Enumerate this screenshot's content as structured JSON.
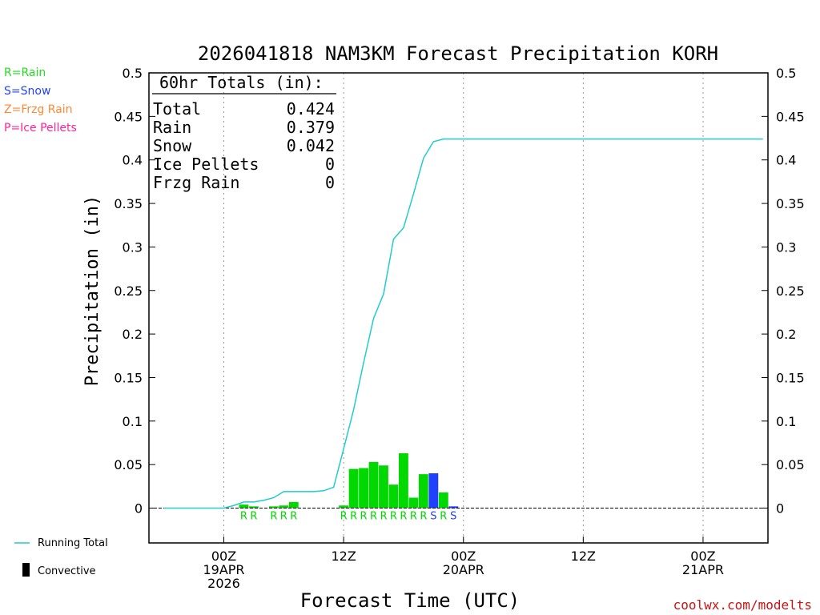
{
  "title": "2026041818 NAM3KM Forecast Precipitation KORH",
  "xlabel": "Forecast Time (UTC)",
  "ylabel": "Precipitation (in)",
  "credit": "coolwx.com/modelts",
  "legend_ptype": [
    {
      "text": "R=Rain",
      "color": "#22dd22"
    },
    {
      "text": "S=Snow",
      "color": "#2244ff"
    },
    {
      "text": "Z=Frzg Rain",
      "color": "#ff8833"
    },
    {
      "text": "P=Ice Pellets",
      "color": "#ff2299"
    }
  ],
  "legend_series": [
    {
      "text": "Running Total",
      "color": "#22cccc",
      "kind": "line"
    },
    {
      "text": "Convective",
      "color": "#000000",
      "kind": "bar"
    }
  ],
  "totals_box": {
    "header": "60hr Totals (in):",
    "rows": [
      {
        "label": "Total",
        "value": "0.424"
      },
      {
        "label": "Rain",
        "value": "0.379"
      },
      {
        "label": "Snow",
        "value": "0.042"
      },
      {
        "label": "Ice Pellets",
        "value": "0"
      },
      {
        "label": "Frzg Rain",
        "value": "0"
      }
    ]
  },
  "colors": {
    "rain": "#00d800",
    "snow": "#2040ff",
    "running_total": "#22cccc",
    "grid": "#999999"
  },
  "chart_data": {
    "type": "bar",
    "title": "2026041818 NAM3KM Forecast Precipitation KORH",
    "xlabel": "Forecast Time (UTC)",
    "ylabel": "Precipitation (in)",
    "ylim": [
      -0.04,
      0.5
    ],
    "yticks": [
      0,
      0.05,
      0.1,
      0.15,
      0.2,
      0.25,
      0.3,
      0.35,
      0.4,
      0.45,
      0.5
    ],
    "ytick_labels": [
      "0",
      "0.05",
      "0.1",
      "0.15",
      "0.2",
      "0.25",
      "0.3",
      "0.35",
      "0.4",
      "0.45",
      "0.5"
    ],
    "x_unit": "forecast hour from 2026041818",
    "xlim": [
      -1.5,
      60.5
    ],
    "xticks": [
      {
        "hour": 6,
        "lines": [
          "00Z",
          "19APR",
          "2026"
        ]
      },
      {
        "hour": 18,
        "lines": [
          "12Z"
        ]
      },
      {
        "hour": 30,
        "lines": [
          "00Z",
          "20APR"
        ]
      },
      {
        "hour": 42,
        "lines": [
          "12Z"
        ]
      },
      {
        "hour": 54,
        "lines": [
          "00Z",
          "21APR"
        ]
      }
    ],
    "bars": [
      {
        "hour": 8,
        "value": 0.004,
        "type": "R"
      },
      {
        "hour": 9,
        "value": 0.002,
        "type": "R"
      },
      {
        "hour": 11,
        "value": 0.002,
        "type": "R"
      },
      {
        "hour": 12,
        "value": 0.003,
        "type": "R"
      },
      {
        "hour": 13,
        "value": 0.007,
        "type": "R"
      },
      {
        "hour": 18,
        "value": 0.003,
        "type": "R"
      },
      {
        "hour": 19,
        "value": 0.045,
        "type": "R"
      },
      {
        "hour": 20,
        "value": 0.046,
        "type": "R"
      },
      {
        "hour": 21,
        "value": 0.053,
        "type": "R"
      },
      {
        "hour": 22,
        "value": 0.049,
        "type": "R"
      },
      {
        "hour": 23,
        "value": 0.027,
        "type": "R"
      },
      {
        "hour": 24,
        "value": 0.063,
        "type": "R"
      },
      {
        "hour": 25,
        "value": 0.012,
        "type": "R"
      },
      {
        "hour": 26,
        "value": 0.039,
        "type": "R"
      },
      {
        "hour": 27,
        "value": 0.04,
        "type": "S"
      },
      {
        "hour": 28,
        "value": 0.018,
        "type": "R"
      },
      {
        "hour": 29,
        "value": 0.002,
        "type": "S"
      }
    ],
    "ptype_letters": [
      {
        "hour": 8,
        "text": "R"
      },
      {
        "hour": 9,
        "text": "R"
      },
      {
        "hour": 11,
        "text": "R"
      },
      {
        "hour": 12,
        "text": "R"
      },
      {
        "hour": 13,
        "text": "R"
      },
      {
        "hour": 18,
        "text": "R"
      },
      {
        "hour": 19,
        "text": "R"
      },
      {
        "hour": 20,
        "text": "R"
      },
      {
        "hour": 21,
        "text": "R"
      },
      {
        "hour": 22,
        "text": "R"
      },
      {
        "hour": 23,
        "text": "R"
      },
      {
        "hour": 24,
        "text": "R"
      },
      {
        "hour": 25,
        "text": "R"
      },
      {
        "hour": 26,
        "text": "R"
      },
      {
        "hour": 27,
        "text": "S"
      },
      {
        "hour": 28,
        "text": "R"
      },
      {
        "hour": 29,
        "text": "S"
      }
    ],
    "running_total": {
      "name": "Running Total",
      "hours": [
        0,
        1,
        2,
        3,
        4,
        5,
        6,
        7,
        8,
        9,
        10,
        11,
        12,
        13,
        14,
        15,
        16,
        17,
        18,
        19,
        20,
        21,
        22,
        23,
        24,
        25,
        26,
        27,
        28,
        29,
        30,
        60
      ],
      "values": [
        0,
        0,
        0,
        0,
        0,
        0,
        0,
        0.003,
        0.007,
        0.007,
        0.009,
        0.012,
        0.019,
        0.019,
        0.019,
        0.019,
        0.02,
        0.024,
        0.068,
        0.113,
        0.167,
        0.218,
        0.246,
        0.309,
        0.322,
        0.361,
        0.402,
        0.421,
        0.424,
        0.424,
        0.424,
        0.424
      ]
    }
  }
}
